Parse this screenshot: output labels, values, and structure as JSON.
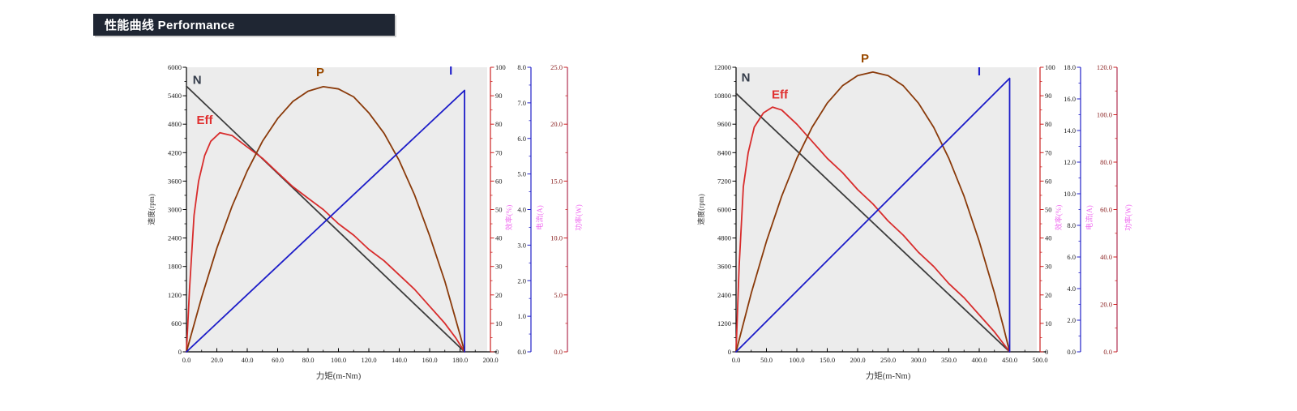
{
  "banner": {
    "text": "性能曲线 Performance",
    "bg": "#1f2633",
    "fg": "#ffffff"
  },
  "colors": {
    "plot_bg": "#ececec",
    "axis_black": "#000000",
    "axis_red": "#cc2222",
    "axis_blue": "#2121c8",
    "axis_power": "#b03050",
    "pink_title": "#f06ef0"
  },
  "chart_data": [
    {
      "type": "line",
      "name": "performance-chart-1",
      "x_axis": {
        "title": "力矩(m-Nm)",
        "min": 0,
        "max": 200,
        "ticks": [
          "0.0",
          "20.0",
          "40.0",
          "60.0",
          "80.0",
          "100.0",
          "120.0",
          "140.0",
          "160.0",
          "180.0",
          "200.0"
        ]
      },
      "y_axis": {
        "title": "速度(rpm)",
        "min": 0,
        "max": 6000,
        "ticks": [
          "0",
          "600",
          "1200",
          "1800",
          "2400",
          "3000",
          "3600",
          "4200",
          "4800",
          "5400",
          "6000"
        ]
      },
      "right_axes": [
        {
          "id": "eff",
          "title": "效率(%)",
          "min": 0,
          "max": 100,
          "ticks": [
            "0",
            "10",
            "20",
            "30",
            "40",
            "50",
            "60",
            "70",
            "80",
            "90",
            "100"
          ],
          "line_color": "#cc2222",
          "tick_text_color": "#1a1a1a",
          "title_color": "#f06ef0",
          "label_side": "right"
        },
        {
          "id": "current",
          "title": "电流(A)",
          "min": 0,
          "max": 8,
          "ticks": [
            "0.0",
            "1.0",
            "2.0",
            "3.0",
            "4.0",
            "5.0",
            "6.0",
            "7.0",
            "8.0"
          ],
          "line_color": "#2121c8",
          "tick_text_color": "#1a1a1a",
          "title_color": "#f06ef0",
          "label_side": "left"
        },
        {
          "id": "power",
          "title": "功率(W)",
          "min": 0,
          "max": 25,
          "ticks": [
            "0.0",
            "5.0",
            "10.0",
            "15.0",
            "20.0",
            "25.0"
          ],
          "line_color": "#b03050",
          "tick_text_color": "#8b2222",
          "title_color": "#f06ef0",
          "label_side": "left"
        }
      ],
      "series": [
        {
          "name": "N",
          "axis": "y",
          "color": "#3c3c3c",
          "label": {
            "text": "N",
            "color": "#333b49",
            "x": 7,
            "y": 5650
          },
          "points": [
            [
              0,
              5600
            ],
            [
              183,
              0
            ]
          ]
        },
        {
          "name": "Eff",
          "axis": "eff",
          "color": "#d82c2c",
          "label": {
            "text": "Eff",
            "color": "#e03030",
            "x": 12,
            "y": 80
          },
          "points": [
            [
              0,
              0
            ],
            [
              2,
              22
            ],
            [
              5,
              48
            ],
            [
              8,
              60
            ],
            [
              12,
              69
            ],
            [
              16,
              74
            ],
            [
              22,
              77
            ],
            [
              30,
              76
            ],
            [
              40,
              72
            ],
            [
              50,
              68
            ],
            [
              60,
              63
            ],
            [
              70,
              58
            ],
            [
              80,
              54
            ],
            [
              90,
              50
            ],
            [
              100,
              45
            ],
            [
              110,
              41
            ],
            [
              120,
              36
            ],
            [
              130,
              32
            ],
            [
              140,
              27
            ],
            [
              150,
              22
            ],
            [
              160,
              16
            ],
            [
              170,
              10
            ],
            [
              177,
              5
            ],
            [
              183,
              0
            ]
          ]
        },
        {
          "name": "P",
          "axis": "power",
          "color": "#8a3a0a",
          "label": {
            "text": "P",
            "color": "#9a4a00",
            "x": 88,
            "y": 24.2
          },
          "points": [
            [
              0,
              0
            ],
            [
              10,
              4.8
            ],
            [
              20,
              9.1
            ],
            [
              30,
              12.8
            ],
            [
              40,
              15.9
            ],
            [
              50,
              18.5
            ],
            [
              60,
              20.5
            ],
            [
              70,
              22.0
            ],
            [
              80,
              22.9
            ],
            [
              90,
              23.3
            ],
            [
              100,
              23.1
            ],
            [
              110,
              22.4
            ],
            [
              120,
              21.0
            ],
            [
              130,
              19.2
            ],
            [
              140,
              16.8
            ],
            [
              150,
              13.8
            ],
            [
              160,
              10.2
            ],
            [
              170,
              6.2
            ],
            [
              180,
              1.5
            ],
            [
              183,
              0
            ]
          ]
        },
        {
          "name": "I",
          "axis": "current",
          "color": "#1c1cc8",
          "label": {
            "text": "I",
            "color": "#2020cc",
            "x": 174,
            "y": 7.8
          },
          "points": [
            [
              0,
              0
            ],
            [
              183,
              7.35
            ],
            [
              183,
              0
            ]
          ]
        }
      ]
    },
    {
      "type": "line",
      "name": "performance-chart-2",
      "x_axis": {
        "title": "力矩(m-Nm)",
        "min": 0,
        "max": 500,
        "ticks": [
          "0.0",
          "50.0",
          "100.0",
          "150.0",
          "200.0",
          "250.0",
          "300.0",
          "350.0",
          "400.0",
          "450.0",
          "500.0"
        ]
      },
      "y_axis": {
        "title": "速度(rpm)",
        "min": 0,
        "max": 12000,
        "ticks": [
          "0",
          "1200",
          "2400",
          "3600",
          "4800",
          "6000",
          "7200",
          "8400",
          "9600",
          "10800",
          "12000"
        ]
      },
      "right_axes": [
        {
          "id": "eff",
          "title": "效率(%)",
          "min": 0,
          "max": 100,
          "ticks": [
            "0",
            "10",
            "20",
            "30",
            "40",
            "50",
            "60",
            "70",
            "80",
            "90",
            "100"
          ],
          "line_color": "#cc2222",
          "tick_text_color": "#1a1a1a",
          "title_color": "#f06ef0",
          "label_side": "right"
        },
        {
          "id": "current",
          "title": "电流(A)",
          "min": 0,
          "max": 18,
          "ticks": [
            "0.0",
            "2.0",
            "4.0",
            "6.0",
            "8.0",
            "10.0",
            "12.0",
            "14.0",
            "16.0",
            "18.0"
          ],
          "line_color": "#2121c8",
          "tick_text_color": "#1a1a1a",
          "title_color": "#f06ef0",
          "label_side": "left"
        },
        {
          "id": "power",
          "title": "功率(W)",
          "min": 0,
          "max": 120,
          "ticks": [
            "0.0",
            "20.0",
            "40.0",
            "60.0",
            "80.0",
            "100.0",
            "120.0"
          ],
          "line_color": "#b03050",
          "tick_text_color": "#8b2222",
          "title_color": "#f06ef0",
          "label_side": "left"
        }
      ],
      "series": [
        {
          "name": "N",
          "axis": "y",
          "color": "#3c3c3c",
          "label": {
            "text": "N",
            "color": "#333b49",
            "x": 16,
            "y": 11400
          },
          "points": [
            [
              0,
              10900
            ],
            [
              450,
              0
            ]
          ]
        },
        {
          "name": "Eff",
          "axis": "eff",
          "color": "#d82c2c",
          "label": {
            "text": "Eff",
            "color": "#e03030",
            "x": 72,
            "y": 89
          },
          "points": [
            [
              0,
              0
            ],
            [
              5,
              30
            ],
            [
              12,
              58
            ],
            [
              20,
              70
            ],
            [
              30,
              79
            ],
            [
              45,
              84
            ],
            [
              60,
              86
            ],
            [
              75,
              85
            ],
            [
              100,
              80
            ],
            [
              125,
              74
            ],
            [
              150,
              68
            ],
            [
              175,
              63
            ],
            [
              200,
              57
            ],
            [
              225,
              52
            ],
            [
              250,
              46
            ],
            [
              275,
              41
            ],
            [
              300,
              35
            ],
            [
              325,
              30
            ],
            [
              350,
              24
            ],
            [
              375,
              19
            ],
            [
              400,
              13
            ],
            [
              425,
              7
            ],
            [
              450,
              0
            ]
          ]
        },
        {
          "name": "P",
          "axis": "power",
          "color": "#8a3a0a",
          "label": {
            "text": "P",
            "color": "#9a4a00",
            "x": 212,
            "y": 122
          },
          "points": [
            [
              0,
              0
            ],
            [
              25,
              24.8
            ],
            [
              50,
              46.6
            ],
            [
              75,
              65.6
            ],
            [
              100,
              81.6
            ],
            [
              125,
              94.7
            ],
            [
              150,
              104.9
            ],
            [
              175,
              112.2
            ],
            [
              200,
              116.5
            ],
            [
              225,
              118
            ],
            [
              250,
              116.5
            ],
            [
              275,
              112.2
            ],
            [
              300,
              104.9
            ],
            [
              325,
              94.7
            ],
            [
              350,
              81.6
            ],
            [
              375,
              65.6
            ],
            [
              400,
              46.6
            ],
            [
              425,
              24.8
            ],
            [
              440,
              10.3
            ],
            [
              450,
              0
            ]
          ]
        },
        {
          "name": "I",
          "axis": "current",
          "color": "#1c1cc8",
          "label": {
            "text": "I",
            "color": "#2020cc",
            "x": 400,
            "y": 17.5
          },
          "points": [
            [
              0,
              0
            ],
            [
              450,
              17.3
            ],
            [
              450,
              0
            ]
          ]
        }
      ]
    }
  ]
}
